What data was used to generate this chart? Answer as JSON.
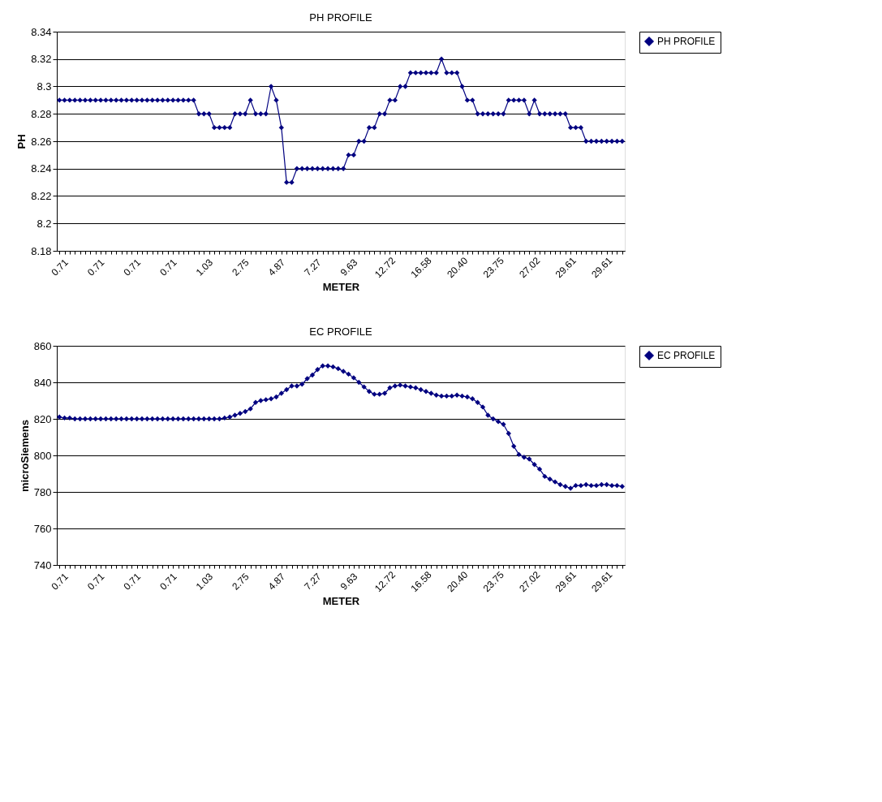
{
  "chart_data": [
    {
      "type": "line",
      "title": "PH PROFILE",
      "xlabel": "METER",
      "ylabel": "PH",
      "legend": "right",
      "grid": "y",
      "marker": "diamond",
      "line_style": "solid",
      "categories": [
        "0.71",
        null,
        null,
        null,
        null,
        null,
        null,
        "0.71",
        null,
        null,
        null,
        null,
        null,
        null,
        "0.71",
        null,
        null,
        null,
        null,
        null,
        null,
        "0.71",
        null,
        null,
        null,
        null,
        null,
        null,
        "1.03",
        null,
        null,
        null,
        null,
        null,
        null,
        "2.75",
        null,
        null,
        null,
        null,
        null,
        null,
        "4.87",
        null,
        null,
        null,
        null,
        null,
        null,
        "7.27",
        null,
        null,
        null,
        null,
        null,
        null,
        "9.63",
        null,
        null,
        null,
        null,
        null,
        null,
        "12.72",
        null,
        null,
        null,
        null,
        null,
        null,
        "16.58",
        null,
        null,
        null,
        null,
        null,
        null,
        "20.40",
        null,
        null,
        null,
        null,
        null,
        null,
        "23.75",
        null,
        null,
        null,
        null,
        null,
        null,
        "27.02",
        null,
        null,
        null,
        null,
        null,
        null,
        "29.61",
        null,
        null,
        null,
        null,
        null,
        null,
        "29.61",
        null,
        null,
        null,
        null
      ],
      "ylim": [
        8.18,
        8.34
      ],
      "yticks": [
        8.18,
        8.2,
        8.22,
        8.24,
        8.26,
        8.28,
        8.3,
        8.32,
        8.34
      ],
      "series": [
        {
          "name": "PH PROFILE",
          "color": "#000080",
          "values": [
            8.29,
            8.29,
            8.29,
            8.29,
            8.29,
            8.29,
            8.29,
            8.29,
            8.29,
            8.29,
            8.29,
            8.29,
            8.29,
            8.29,
            8.29,
            8.29,
            8.29,
            8.29,
            8.29,
            8.29,
            8.29,
            8.29,
            8.29,
            8.29,
            8.29,
            8.29,
            8.29,
            8.28,
            8.28,
            8.28,
            8.27,
            8.27,
            8.27,
            8.27,
            8.28,
            8.28,
            8.28,
            8.29,
            8.28,
            8.28,
            8.28,
            8.3,
            8.29,
            8.27,
            8.23,
            8.23,
            8.24,
            8.24,
            8.24,
            8.24,
            8.24,
            8.24,
            8.24,
            8.24,
            8.24,
            8.24,
            8.25,
            8.25,
            8.26,
            8.26,
            8.27,
            8.27,
            8.28,
            8.28,
            8.29,
            8.29,
            8.3,
            8.3,
            8.31,
            8.31,
            8.31,
            8.31,
            8.31,
            8.31,
            8.32,
            8.31,
            8.31,
            8.31,
            8.3,
            8.29,
            8.29,
            8.28,
            8.28,
            8.28,
            8.28,
            8.28,
            8.28,
            8.29,
            8.29,
            8.29,
            8.29,
            8.28,
            8.29,
            8.28,
            8.28,
            8.28,
            8.28,
            8.28,
            8.28,
            8.27,
            8.27,
            8.27,
            8.26,
            8.26,
            8.26,
            8.26,
            8.26,
            8.26,
            8.26,
            8.26
          ]
        }
      ]
    },
    {
      "type": "line",
      "title": "EC PROFILE",
      "xlabel": "METER",
      "ylabel": "microSiemens",
      "legend": "right",
      "grid": "y",
      "marker": "diamond",
      "line_style": "solid",
      "categories": [
        "0.71",
        null,
        null,
        null,
        null,
        null,
        null,
        "0.71",
        null,
        null,
        null,
        null,
        null,
        null,
        "0.71",
        null,
        null,
        null,
        null,
        null,
        null,
        "0.71",
        null,
        null,
        null,
        null,
        null,
        null,
        "1.03",
        null,
        null,
        null,
        null,
        null,
        null,
        "2.75",
        null,
        null,
        null,
        null,
        null,
        null,
        "4.87",
        null,
        null,
        null,
        null,
        null,
        null,
        "7.27",
        null,
        null,
        null,
        null,
        null,
        null,
        "9.63",
        null,
        null,
        null,
        null,
        null,
        null,
        "12.72",
        null,
        null,
        null,
        null,
        null,
        null,
        "16.58",
        null,
        null,
        null,
        null,
        null,
        null,
        "20.40",
        null,
        null,
        null,
        null,
        null,
        null,
        "23.75",
        null,
        null,
        null,
        null,
        null,
        null,
        "27.02",
        null,
        null,
        null,
        null,
        null,
        null,
        "29.61",
        null,
        null,
        null,
        null,
        null,
        null,
        "29.61",
        null,
        null,
        null,
        null
      ],
      "ylim": [
        740,
        860
      ],
      "yticks": [
        740,
        760,
        780,
        800,
        820,
        840,
        860
      ],
      "series": [
        {
          "name": "EC PROFILE",
          "color": "#000080",
          "values": [
            821,
            820.5,
            820.5,
            820,
            820,
            820,
            820,
            820,
            820,
            820,
            820,
            820,
            820,
            820,
            820,
            820,
            820,
            820,
            820,
            820,
            820,
            820,
            820,
            820,
            820,
            820,
            820,
            820,
            820,
            820,
            820,
            820,
            820.5,
            821,
            822,
            823,
            824,
            825.5,
            829,
            830,
            830.5,
            831,
            832,
            834,
            836,
            838,
            838,
            839,
            842,
            844,
            847,
            849,
            849,
            848.5,
            847.5,
            846,
            844.5,
            842.5,
            840,
            837.5,
            835,
            833.5,
            833.5,
            834,
            837,
            838,
            838.5,
            838,
            837.5,
            837,
            836,
            835,
            834,
            833,
            832.5,
            832.5,
            832.5,
            833,
            832.5,
            832,
            831,
            829,
            826.5,
            822,
            820,
            818.5,
            817,
            812,
            805,
            800.5,
            799,
            798,
            795,
            792.5,
            788.5,
            787,
            785.5,
            784,
            783,
            782,
            783.5,
            783.5,
            784,
            783.5,
            783.5,
            784,
            784,
            783.5,
            783.5,
            783
          ]
        }
      ]
    }
  ]
}
